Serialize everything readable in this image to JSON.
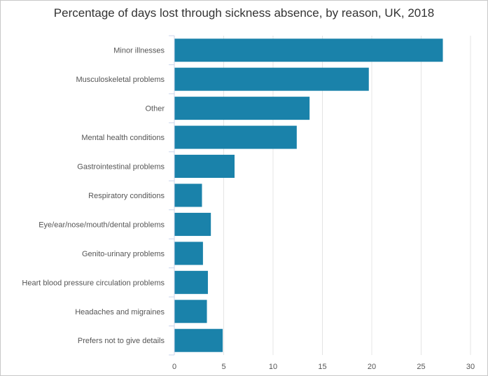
{
  "chart_data": {
    "type": "bar",
    "orientation": "horizontal",
    "title": "Percentage of days lost through sickness absence, by reason, UK, 2018",
    "xlabel": "",
    "ylabel": "",
    "categories": [
      "Minor illnesses",
      "Musculoskeletal problems",
      "Other",
      "Mental health conditions",
      "Gastrointestinal problems",
      "Respiratory conditions",
      "Eye/ear/nose/mouth/dental problems",
      "Genito-urinary problems",
      "Heart blood pressure circulation problems",
      "Headaches and migraines",
      "Prefers not to give details"
    ],
    "values": [
      27.2,
      19.7,
      13.7,
      12.4,
      6.1,
      2.8,
      3.7,
      2.9,
      3.4,
      3.3,
      4.9
    ],
    "xlim": [
      0,
      30
    ],
    "xticks": [
      0,
      5,
      10,
      15,
      20,
      25,
      30
    ],
    "grid": "vertical",
    "bar_color": "#1a82aa"
  }
}
